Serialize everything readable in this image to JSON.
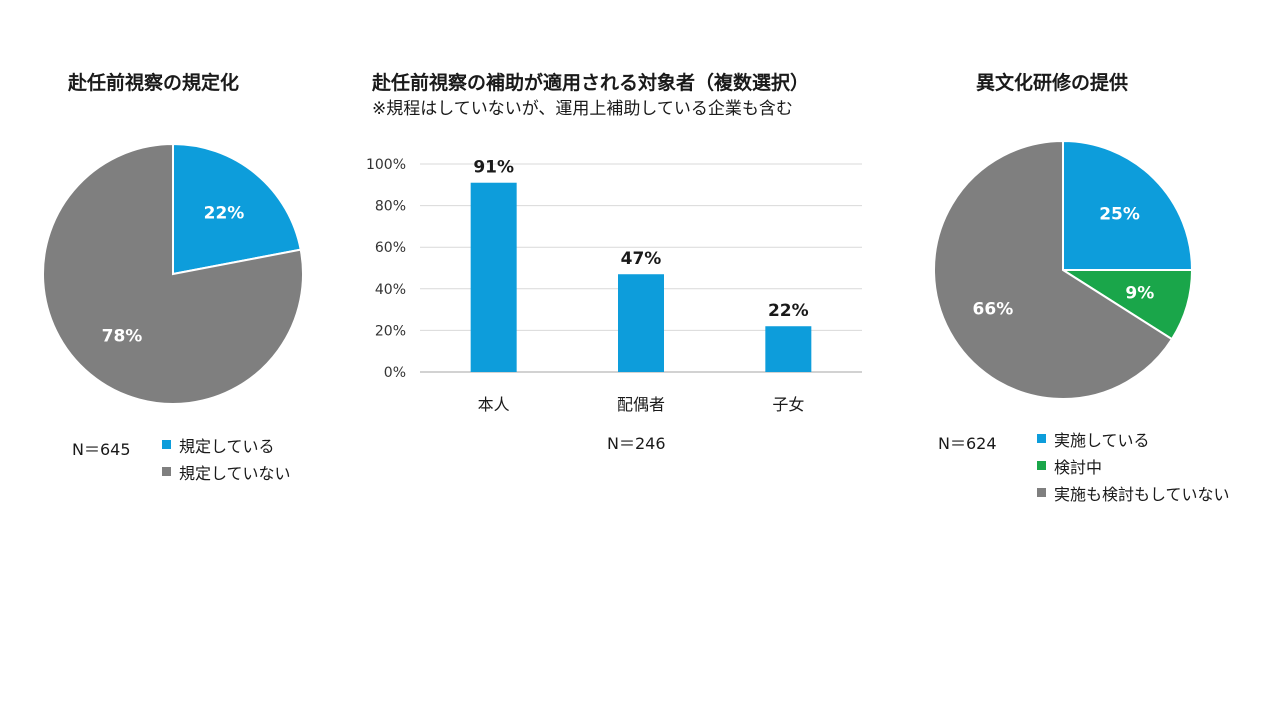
{
  "colors": {
    "blue": "#0d9ddb",
    "gray": "#7f7f7f",
    "green": "#1aa64a",
    "grid": "#d9d9d9",
    "axis": "#a6a6a6"
  },
  "chart_data": [
    {
      "type": "pie",
      "title": "赴任前視察の規定化",
      "n_label": "N＝645",
      "slices": [
        {
          "name": "規定している",
          "value": 22,
          "label": "22%",
          "color": "#0d9ddb"
        },
        {
          "name": "規定していない",
          "value": 78,
          "label": "78%",
          "color": "#7f7f7f"
        }
      ],
      "legend_position": "bottom-right"
    },
    {
      "type": "bar",
      "title": "赴任前視察の補助が適用される対象者（複数選択）",
      "subtitle": "※規程はしていないが、運用上補助している企業も含む",
      "n_label": "N＝246",
      "categories": [
        "本人",
        "配偶者",
        "子女"
      ],
      "values": [
        91,
        47,
        22
      ],
      "value_labels": [
        "91%",
        "47%",
        "22%"
      ],
      "yticks": [
        "0%",
        "20%",
        "40%",
        "60%",
        "80%",
        "100%"
      ],
      "ylim": [
        0,
        100
      ],
      "grid": true,
      "color": "#0d9ddb"
    },
    {
      "type": "pie",
      "title": "異文化研修の提供",
      "n_label": "N＝624",
      "slices": [
        {
          "name": "実施している",
          "value": 25,
          "label": "25%",
          "color": "#0d9ddb"
        },
        {
          "name": "検討中",
          "value": 9,
          "label": "9%",
          "color": "#1aa64a"
        },
        {
          "name": "実施も検討もしていない",
          "value": 66,
          "label": "66%",
          "color": "#7f7f7f"
        }
      ],
      "legend_position": "bottom-right"
    }
  ]
}
